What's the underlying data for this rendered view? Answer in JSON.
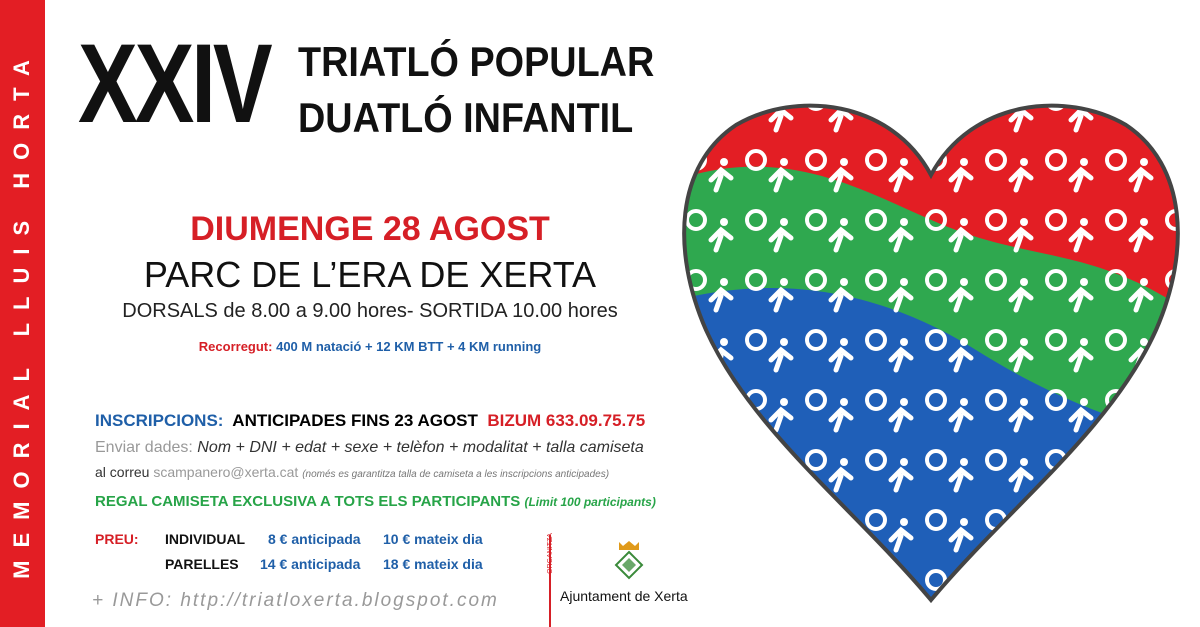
{
  "sidebar": {
    "text": "MEMORIAL LLUIS HORTA"
  },
  "title": {
    "edition": "XXIV",
    "line1": "TRIATLÓ POPULAR",
    "line2": "DUATLÓ INFANTIL"
  },
  "event": {
    "date": "DIUMENGE 28 AGOST",
    "place": "PARC DE L’ERA DE XERTA",
    "times": "DORSALS de 8.00 a 9.00 hores- SORTIDA 10.00 hores",
    "route_label": "Recorregut:",
    "route": "400 M natació + 12 KM BTT + 4 KM running"
  },
  "registration": {
    "label": "INSCRIPCIONS:",
    "deadline": "ANTICIPADES FINS 23 AGOST",
    "bizum": "BIZUM 633.09.75.75",
    "send_label": "Enviar dades:",
    "send_fields": "Nom + DNI + edat + sexe + telèfon + modalitat + talla camiseta",
    "mail_prefix": "al correu",
    "email": "scampanero@xerta.cat",
    "note": "(només es garantitza talla de camiseta a les inscripcions anticipades)",
    "gift": "REGAL CAMISETA EXCLUSIVA A TOTS ELS PARTICIPANTS",
    "gift_note": "(Limit 100 participants)"
  },
  "prices": {
    "label": "PREU:",
    "rows": [
      {
        "type": "INDIVIDUAL",
        "early": "8 € anticipada",
        "same_day": "10 € mateix dia"
      },
      {
        "type": "PARELLES",
        "early": "14 € anticipada",
        "same_day": "18 € mateix dia"
      }
    ]
  },
  "info": "+ INFO: http://triatloxerta.blogspot.com",
  "organizer": {
    "label": "ORGANITZA",
    "name": "Ajuntament de Xerta"
  },
  "colors": {
    "red": "#e31e24",
    "green": "#2fa84f",
    "blue": "#1f5fb8"
  }
}
